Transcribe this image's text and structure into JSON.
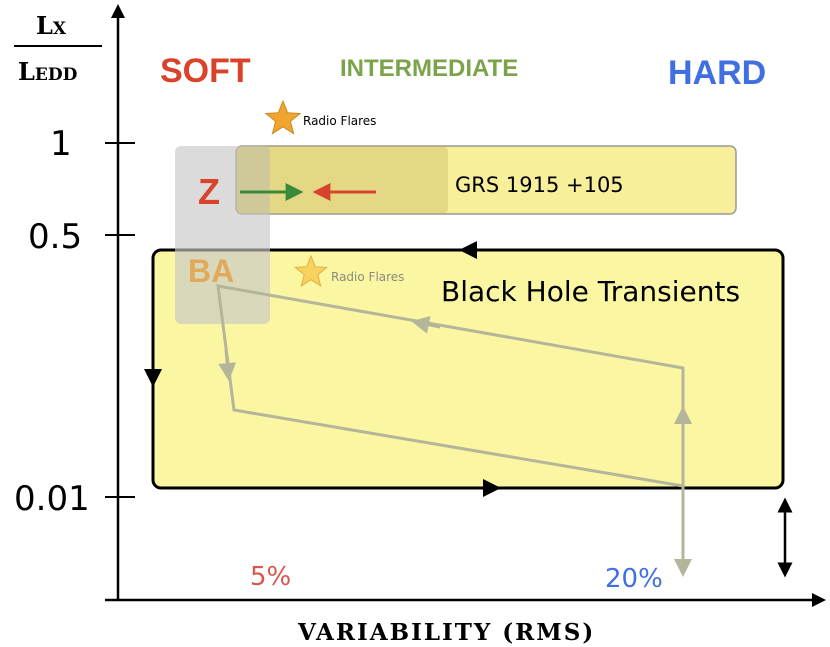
{
  "axes": {
    "y_label_numerator": "L",
    "y_label_numerator_sub": "X",
    "y_label_denominator": "L",
    "y_label_denominator_sub": "EDD",
    "y_ticks": [
      "1",
      "0.5",
      "0.01"
    ],
    "x_label": "VARIABILITY (RMS)",
    "x_ticks": [
      "5%",
      "20%"
    ]
  },
  "states": {
    "soft": "SOFT",
    "intermediate": "INTERMEDIATE",
    "hard": "HARD"
  },
  "regions": {
    "z_label": "Z",
    "ba_label": "BA",
    "grs_label": "GRS 1915 +105",
    "bht_label": "Black Hole Transients"
  },
  "annotations": {
    "radio_flares_top": "Radio Flares",
    "radio_flares_bottom": "Radio Flares"
  },
  "colors": {
    "soft": "#d9432b",
    "intermediate": "#7aa34a",
    "hard": "#3f6fe0",
    "box_fill": "#fbf6a2",
    "grey_band": "#c8c8c8",
    "star": "#f0a531",
    "z_arrow_green": "#3a8a3a",
    "z_arrow_red": "#d9432b",
    "ba_label": "#e3a14a",
    "track": "#a8a98e"
  }
}
